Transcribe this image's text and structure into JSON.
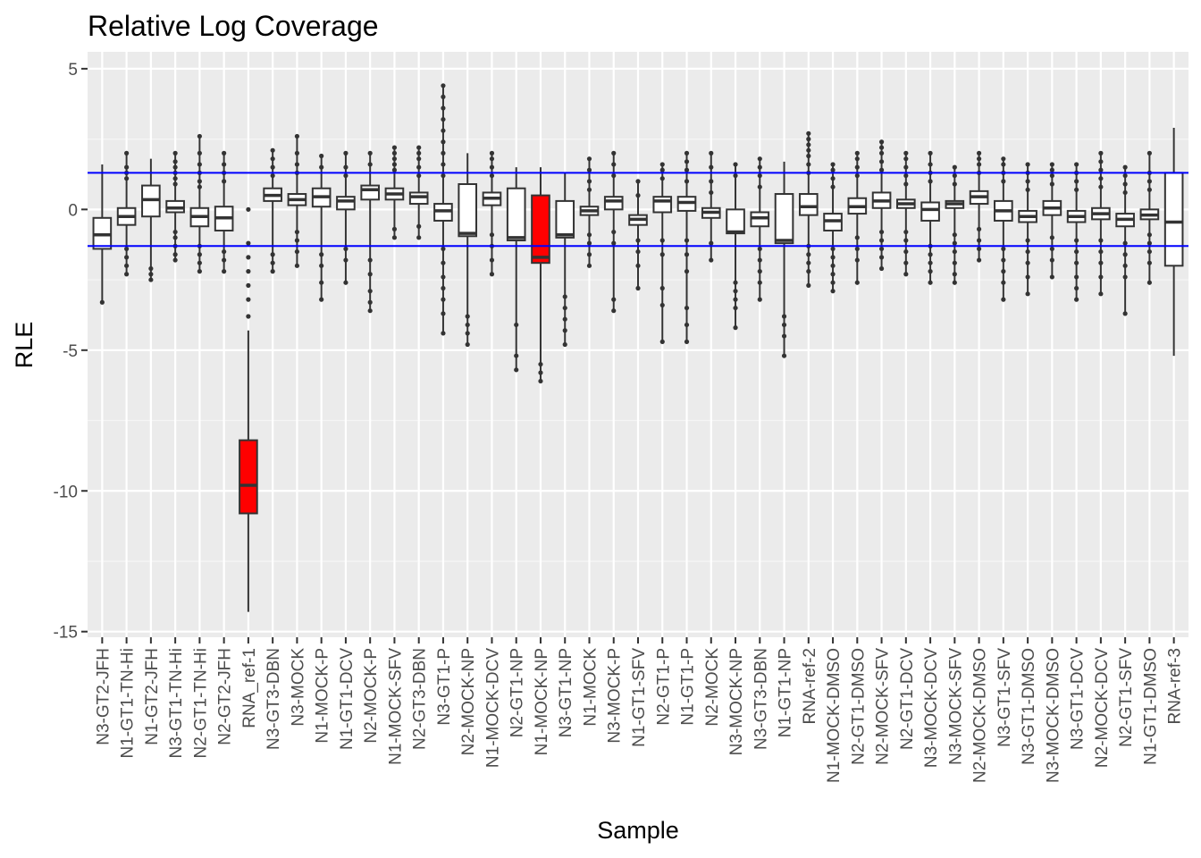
{
  "chart_data": {
    "type": "boxplot",
    "title": "Relative Log Coverage",
    "xlabel": "Sample",
    "ylabel": "RLE",
    "ylim": [
      -15.2,
      5.6
    ],
    "yticks": [
      5,
      0,
      -5,
      -10,
      -15
    ],
    "ytick_labels": [
      "5",
      "0",
      "-5",
      "-10",
      "-15"
    ],
    "grid": true,
    "legend": "none",
    "hlines": [
      1.3,
      -1.3
    ],
    "hline_color": "#0000ff",
    "panel_color": "#ebebeb",
    "box_fill_default": "#ffffff",
    "box_fill_highlight": "#ff0000",
    "box_stroke": "#333333",
    "categories": [
      "N3-GT2-JFH",
      "N1-GT1-TN-Hi",
      "N1-GT2-JFH",
      "N3-GT1-TN-Hi",
      "N2-GT1-TN-Hi",
      "N2-GT2-JFH",
      "RNA_ref-1",
      "N3-GT3-DBN",
      "N3-MOCK",
      "N1-MOCK-P",
      "N1-GT1-DCV",
      "N2-MOCK-P",
      "N1-MOCK-SFV",
      "N2-GT3-DBN",
      "N3-GT1-P",
      "N2-MOCK-NP",
      "N1-MOCK-DCV",
      "N2-GT1-NP",
      "N1-MOCK-NP",
      "N3-GT1-NP",
      "N1-MOCK",
      "N3-MOCK-P",
      "N1-GT1-SFV",
      "N2-GT1-P",
      "N1-GT1-P",
      "N2-MOCK",
      "N3-MOCK-NP",
      "N3-GT3-DBN",
      "N1-GT1-NP",
      "RNA-ref-2",
      "N1-MOCK-DMSO",
      "N2-GT1-DMSO",
      "N2-MOCK-SFV",
      "N2-GT1-DCV",
      "N3-MOCK-DCV",
      "N3-MOCK-SFV",
      "N2-MOCK-DMSO",
      "N3-GT1-SFV",
      "N3-GT1-DMSO",
      "N3-MOCK-DMSO",
      "N3-GT1-DCV",
      "N2-MOCK-DCV",
      "N2-GT1-SFV",
      "N1-GT1-DMSO",
      "RNA-ref-3"
    ],
    "boxes": [
      {
        "min": -3.3,
        "q1": -1.4,
        "median": -0.9,
        "q3": -0.3,
        "max": 1.6,
        "highlight": false,
        "outliers": [
          -3.3
        ]
      },
      {
        "min": -2.3,
        "q1": -0.55,
        "median": -0.25,
        "q3": 0.05,
        "max": 2.0,
        "highlight": false,
        "outliers": [
          1.1,
          1.3,
          1.5,
          2.0,
          -1.4,
          -1.7,
          -2.0,
          -2.3
        ]
      },
      {
        "min": -2.5,
        "q1": -0.25,
        "median": 0.35,
        "q3": 0.85,
        "max": 1.8,
        "highlight": false,
        "outliers": [
          -2.1,
          -2.3,
          -2.5
        ]
      },
      {
        "min": -1.8,
        "q1": -0.1,
        "median": 0.05,
        "q3": 0.3,
        "max": 2.0,
        "highlight": false,
        "outliers": [
          0.9,
          1.1,
          1.3,
          1.5,
          1.7,
          2.0,
          -0.8,
          -1.0,
          -1.3,
          -1.6,
          -1.8
        ]
      },
      {
        "min": -2.2,
        "q1": -0.6,
        "median": -0.25,
        "q3": 0.05,
        "max": 2.6,
        "highlight": false,
        "outliers": [
          0.8,
          1.0,
          1.3,
          1.6,
          2.0,
          2.6,
          -1.3,
          -1.6,
          -1.9,
          -2.2
        ]
      },
      {
        "min": -2.2,
        "q1": -0.75,
        "median": -0.3,
        "q3": 0.1,
        "max": 2.0,
        "highlight": false,
        "outliers": [
          1.0,
          1.3,
          1.6,
          2.0,
          -1.5,
          -1.8,
          -2.2
        ]
      },
      {
        "min": -14.3,
        "q1": -10.8,
        "median": -9.8,
        "q3": -8.2,
        "max": -4.3,
        "highlight": true,
        "outliers": [
          -3.8,
          -3.2,
          -2.7,
          -2.2,
          -1.7,
          -1.2,
          0.0
        ]
      },
      {
        "min": -2.2,
        "q1": 0.3,
        "median": 0.5,
        "q3": 0.75,
        "max": 2.1,
        "highlight": false,
        "outliers": [
          1.2,
          1.5,
          1.8,
          2.1,
          -1.6,
          -1.9,
          -2.2
        ]
      },
      {
        "min": -2.0,
        "q1": 0.15,
        "median": 0.35,
        "q3": 0.55,
        "max": 2.6,
        "highlight": false,
        "outliers": [
          1.3,
          1.6,
          2.0,
          2.6,
          -0.8,
          -1.1,
          -1.5,
          -2.0
        ]
      },
      {
        "min": -3.2,
        "q1": 0.1,
        "median": 0.45,
        "q3": 0.75,
        "max": 1.9,
        "highlight": false,
        "outliers": [
          1.5,
          1.9,
          -1.6,
          -2.0,
          -2.6,
          -3.2
        ]
      },
      {
        "min": -2.6,
        "q1": 0.0,
        "median": 0.3,
        "q3": 0.45,
        "max": 2.0,
        "highlight": false,
        "outliers": [
          1.2,
          1.5,
          2.0,
          -1.4,
          -1.8,
          -2.6
        ]
      },
      {
        "min": -3.6,
        "q1": 0.35,
        "median": 0.7,
        "q3": 0.85,
        "max": 2.0,
        "highlight": false,
        "outliers": [
          1.6,
          2.0,
          -1.8,
          -2.3,
          -2.9,
          -3.3,
          -3.6
        ]
      },
      {
        "min": -1.0,
        "q1": 0.35,
        "median": 0.55,
        "q3": 0.75,
        "max": 2.2,
        "highlight": false,
        "outliers": [
          1.4,
          1.6,
          1.8,
          2.0,
          2.2,
          -0.7,
          -1.0
        ]
      },
      {
        "min": -1.0,
        "q1": 0.2,
        "median": 0.45,
        "q3": 0.6,
        "max": 2.2,
        "highlight": false,
        "outliers": [
          1.2,
          1.5,
          1.8,
          2.0,
          2.2,
          -0.6,
          -1.0
        ]
      },
      {
        "min": -4.4,
        "q1": -0.4,
        "median": -0.05,
        "q3": 0.2,
        "max": 4.4,
        "highlight": false,
        "outliers": [
          1.2,
          1.6,
          2.0,
          2.4,
          2.8,
          3.2,
          3.6,
          4.0,
          4.4,
          -1.4,
          -1.9,
          -2.4,
          -2.8,
          -3.2,
          -3.7,
          -4.4
        ]
      },
      {
        "min": -4.8,
        "q1": -0.95,
        "median": -0.85,
        "q3": 0.9,
        "max": 2.0,
        "highlight": false,
        "outliers": [
          -3.8,
          -4.1,
          -4.4,
          -4.8
        ]
      },
      {
        "min": -2.3,
        "q1": 0.15,
        "median": 0.4,
        "q3": 0.6,
        "max": 2.0,
        "highlight": false,
        "outliers": [
          1.2,
          1.5,
          1.8,
          2.0,
          -0.9,
          -1.3,
          -1.8,
          -2.3
        ]
      },
      {
        "min": -5.7,
        "q1": -1.1,
        "median": -1.0,
        "q3": 0.75,
        "max": 1.5,
        "highlight": false,
        "outliers": [
          -4.1,
          -5.2,
          -5.7
        ]
      },
      {
        "min": -6.1,
        "q1": -1.9,
        "median": -1.7,
        "q3": 0.5,
        "max": 1.5,
        "highlight": true,
        "outliers": [
          -5.5,
          -5.8,
          -6.1
        ]
      },
      {
        "min": -4.8,
        "q1": -1.0,
        "median": -0.9,
        "q3": 0.3,
        "max": 1.3,
        "highlight": false,
        "outliers": [
          -3.1,
          -3.5,
          -3.9,
          -4.3,
          -4.8
        ]
      },
      {
        "min": -2.0,
        "q1": -0.2,
        "median": -0.05,
        "q3": 0.1,
        "max": 1.8,
        "highlight": false,
        "outliers": [
          0.7,
          1.0,
          1.4,
          1.8,
          -0.9,
          -1.2,
          -1.6,
          -2.0
        ]
      },
      {
        "min": -3.6,
        "q1": 0.0,
        "median": 0.3,
        "q3": 0.45,
        "max": 2.0,
        "highlight": false,
        "outliers": [
          1.2,
          1.6,
          2.0,
          -0.8,
          -1.2,
          -3.2,
          -3.6
        ]
      },
      {
        "min": -2.8,
        "q1": -0.55,
        "median": -0.35,
        "q3": -0.2,
        "max": 1.0,
        "highlight": false,
        "outliers": [
          0.5,
          1.0,
          -1.1,
          -1.5,
          -2.0,
          -2.8
        ]
      },
      {
        "min": -4.7,
        "q1": -0.1,
        "median": 0.3,
        "q3": 0.45,
        "max": 1.6,
        "highlight": false,
        "outliers": [
          1.1,
          1.4,
          1.6,
          -1.1,
          -1.6,
          -2.8,
          -3.4,
          -4.7
        ]
      },
      {
        "min": -4.7,
        "q1": -0.05,
        "median": 0.25,
        "q3": 0.45,
        "max": 2.0,
        "highlight": false,
        "outliers": [
          1.0,
          1.4,
          1.7,
          2.0,
          -1.1,
          -1.6,
          -2.2,
          -3.5,
          -4.1,
          -4.7
        ]
      },
      {
        "min": -1.8,
        "q1": -0.3,
        "median": -0.1,
        "q3": 0.05,
        "max": 2.0,
        "highlight": false,
        "outliers": [
          0.6,
          1.0,
          1.5,
          2.0,
          -1.2,
          -1.8
        ]
      },
      {
        "min": -4.2,
        "q1": -0.85,
        "median": -0.8,
        "q3": 0.0,
        "max": 1.6,
        "highlight": false,
        "outliers": [
          1.2,
          1.6,
          -2.6,
          -2.9,
          -3.2,
          -3.5,
          -4.2
        ]
      },
      {
        "min": -3.2,
        "q1": -0.6,
        "median": -0.3,
        "q3": -0.1,
        "max": 1.8,
        "highlight": false,
        "outliers": [
          0.8,
          1.2,
          1.5,
          1.8,
          -1.4,
          -1.8,
          -2.2,
          -2.6,
          -3.2
        ]
      },
      {
        "min": -5.2,
        "q1": -1.2,
        "median": -1.1,
        "q3": 0.55,
        "max": 1.7,
        "highlight": false,
        "outliers": [
          -3.8,
          -4.1,
          -4.5,
          -5.2
        ]
      },
      {
        "min": -2.7,
        "q1": -0.2,
        "median": 0.1,
        "q3": 0.55,
        "max": 2.7,
        "highlight": false,
        "outliers": [
          1.3,
          1.6,
          1.9,
          2.1,
          2.3,
          2.5,
          2.7,
          -1.3,
          -1.6,
          -1.9,
          -2.2,
          -2.7
        ]
      },
      {
        "min": -2.9,
        "q1": -0.75,
        "median": -0.4,
        "q3": -0.15,
        "max": 1.6,
        "highlight": false,
        "outliers": [
          0.8,
          1.1,
          1.4,
          1.6,
          -1.4,
          -1.7,
          -2.0,
          -2.3,
          -2.6,
          -2.9
        ]
      },
      {
        "min": -2.6,
        "q1": -0.15,
        "median": 0.1,
        "q3": 0.4,
        "max": 2.0,
        "highlight": false,
        "outliers": [
          1.2,
          1.5,
          1.8,
          2.0,
          -1.0,
          -1.4,
          -1.8,
          -2.6
        ]
      },
      {
        "min": -2.1,
        "q1": 0.05,
        "median": 0.3,
        "q3": 0.6,
        "max": 2.4,
        "highlight": false,
        "outliers": [
          1.4,
          1.7,
          2.0,
          2.2,
          2.4,
          -0.8,
          -1.1,
          -1.4,
          -1.7,
          -2.1
        ]
      },
      {
        "min": -2.3,
        "q1": 0.05,
        "median": 0.2,
        "q3": 0.35,
        "max": 2.0,
        "highlight": false,
        "outliers": [
          0.9,
          1.2,
          1.5,
          1.8,
          2.0,
          -0.8,
          -1.1,
          -1.5,
          -1.9,
          -2.3
        ]
      },
      {
        "min": -2.6,
        "q1": -0.4,
        "median": 0.0,
        "q3": 0.25,
        "max": 2.0,
        "highlight": false,
        "outliers": [
          1.0,
          1.3,
          1.6,
          2.0,
          -1.3,
          -1.6,
          -1.9,
          -2.2,
          -2.6
        ]
      },
      {
        "min": -2.6,
        "q1": 0.05,
        "median": 0.2,
        "q3": 0.3,
        "max": 1.5,
        "highlight": false,
        "outliers": [
          0.9,
          1.2,
          1.5,
          -0.9,
          -1.2,
          -1.5,
          -1.9,
          -2.3,
          -2.6
        ]
      },
      {
        "min": -1.8,
        "q1": 0.2,
        "median": 0.45,
        "q3": 0.65,
        "max": 2.0,
        "highlight": false,
        "outliers": [
          1.3,
          1.6,
          1.8,
          2.0,
          -0.7,
          -1.1,
          -1.4,
          -1.8
        ]
      },
      {
        "min": -3.2,
        "q1": -0.4,
        "median": -0.05,
        "q3": 0.3,
        "max": 1.8,
        "highlight": false,
        "outliers": [
          1.0,
          1.3,
          1.6,
          1.8,
          -1.4,
          -1.8,
          -2.2,
          -2.6,
          -3.2
        ]
      },
      {
        "min": -3.0,
        "q1": -0.45,
        "median": -0.25,
        "q3": -0.05,
        "max": 1.6,
        "highlight": false,
        "outliers": [
          0.7,
          1.0,
          1.3,
          1.6,
          -1.1,
          -1.5,
          -1.9,
          -2.4,
          -3.0
        ]
      },
      {
        "min": -2.4,
        "q1": -0.2,
        "median": 0.05,
        "q3": 0.3,
        "max": 1.6,
        "highlight": false,
        "outliers": [
          0.9,
          1.2,
          1.4,
          1.6,
          -1.0,
          -1.4,
          -1.8,
          -2.4
        ]
      },
      {
        "min": -3.2,
        "q1": -0.45,
        "median": -0.25,
        "q3": -0.05,
        "max": 1.6,
        "highlight": false,
        "outliers": [
          0.7,
          1.0,
          1.3,
          1.6,
          -1.1,
          -1.5,
          -1.9,
          -2.4,
          -2.8,
          -3.2
        ]
      },
      {
        "min": -3.0,
        "q1": -0.35,
        "median": -0.15,
        "q3": 0.05,
        "max": 2.0,
        "highlight": false,
        "outliers": [
          0.8,
          1.1,
          1.4,
          1.7,
          2.0,
          -1.1,
          -1.5,
          -1.9,
          -2.4,
          -3.0
        ]
      },
      {
        "min": -3.7,
        "q1": -0.6,
        "median": -0.35,
        "q3": -0.15,
        "max": 1.5,
        "highlight": false,
        "outliers": [
          0.6,
          0.9,
          1.2,
          1.5,
          -1.2,
          -1.6,
          -2.0,
          -2.4,
          -3.7
        ]
      },
      {
        "min": -2.6,
        "q1": -0.35,
        "median": -0.2,
        "q3": 0.0,
        "max": 2.0,
        "highlight": false,
        "outliers": [
          0.7,
          1.0,
          1.3,
          2.0,
          -0.9,
          -1.2,
          -1.5,
          -1.9,
          -2.6
        ]
      },
      {
        "min": -5.2,
        "q1": -2.0,
        "median": -0.45,
        "q3": 1.3,
        "max": 2.9,
        "highlight": false,
        "outliers": []
      }
    ]
  }
}
